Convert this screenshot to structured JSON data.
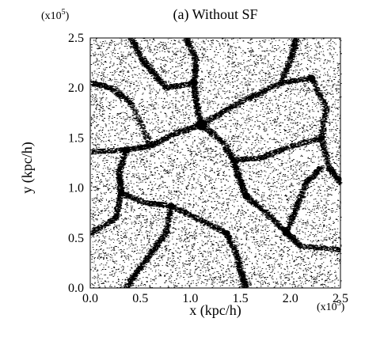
{
  "chart_data": {
    "type": "scatter",
    "title": "(a) Without SF",
    "xlabel": "x (kpc/h)",
    "ylabel": "y (kpc/h)",
    "x_multiplier": "(x10",
    "x_multiplier_exp": "5",
    "x_multiplier_close": ")",
    "y_multiplier": "(x10",
    "y_multiplier_exp": "5",
    "y_multiplier_close": ")",
    "xlim": [
      0.0,
      2.5
    ],
    "ylim": [
      0.0,
      2.5
    ],
    "x_ticks": [
      "0.0",
      "0.5",
      "1.0",
      "1.5",
      "2.0",
      "2.5"
    ],
    "y_ticks": [
      "0.0",
      "0.5",
      "1.0",
      "1.5",
      "2.0",
      "2.5"
    ],
    "grid": false,
    "legend": "none",
    "point_color": "#000000",
    "filaments": [
      [
        [
          0.95,
          2.5
        ],
        [
          1.05,
          2.28
        ],
        [
          1.03,
          2.05
        ],
        [
          1.05,
          1.85
        ],
        [
          1.1,
          1.63
        ]
      ],
      [
        [
          1.1,
          1.63
        ],
        [
          0.85,
          1.55
        ],
        [
          0.6,
          1.42
        ],
        [
          0.35,
          1.38
        ],
        [
          0.0,
          1.36
        ]
      ],
      [
        [
          1.1,
          1.63
        ],
        [
          1.3,
          1.48
        ],
        [
          1.42,
          1.28
        ],
        [
          1.48,
          1.1
        ],
        [
          1.55,
          0.92
        ]
      ],
      [
        [
          1.1,
          1.63
        ],
        [
          1.35,
          1.78
        ],
        [
          1.62,
          1.92
        ],
        [
          1.9,
          2.05
        ],
        [
          2.2,
          2.1
        ]
      ],
      [
        [
          1.55,
          0.92
        ],
        [
          1.75,
          0.75
        ],
        [
          1.95,
          0.55
        ],
        [
          2.1,
          0.42
        ],
        [
          2.5,
          0.38
        ]
      ],
      [
        [
          0.35,
          1.38
        ],
        [
          0.28,
          1.15
        ],
        [
          0.3,
          0.95
        ],
        [
          0.25,
          0.7
        ],
        [
          0.0,
          0.55
        ]
      ],
      [
        [
          0.3,
          0.95
        ],
        [
          0.55,
          0.85
        ],
        [
          0.8,
          0.82
        ],
        [
          1.05,
          0.7
        ],
        [
          1.35,
          0.55
        ]
      ],
      [
        [
          1.35,
          0.55
        ],
        [
          1.45,
          0.35
        ],
        [
          1.5,
          0.15
        ],
        [
          1.55,
          0.0
        ]
      ],
      [
        [
          0.4,
          2.5
        ],
        [
          0.5,
          2.3
        ],
        [
          0.62,
          2.15
        ],
        [
          0.75,
          2.0
        ],
        [
          1.03,
          2.05
        ]
      ],
      [
        [
          1.9,
          2.05
        ],
        [
          2.0,
          2.3
        ],
        [
          2.05,
          2.5
        ]
      ],
      [
        [
          2.2,
          2.1
        ],
        [
          2.35,
          1.8
        ],
        [
          2.3,
          1.5
        ],
        [
          2.38,
          1.2
        ],
        [
          2.5,
          1.05
        ]
      ],
      [
        [
          0.8,
          0.82
        ],
        [
          0.75,
          0.55
        ],
        [
          0.6,
          0.35
        ],
        [
          0.45,
          0.15
        ],
        [
          0.35,
          0.0
        ]
      ],
      [
        [
          1.95,
          0.55
        ],
        [
          2.05,
          0.8
        ],
        [
          2.15,
          1.05
        ],
        [
          2.3,
          1.2
        ]
      ],
      [
        [
          0.0,
          2.05
        ],
        [
          0.2,
          2.0
        ],
        [
          0.4,
          1.85
        ],
        [
          0.6,
          1.42
        ]
      ],
      [
        [
          1.42,
          1.28
        ],
        [
          1.7,
          1.3
        ],
        [
          1.95,
          1.4
        ],
        [
          2.3,
          1.5
        ]
      ]
    ],
    "knots": [
      [
        1.1,
        1.63,
        0.05
      ],
      [
        0.35,
        1.38,
        0.03
      ],
      [
        1.55,
        0.92,
        0.03
      ],
      [
        0.8,
        0.82,
        0.025
      ],
      [
        1.95,
        0.55,
        0.03
      ],
      [
        1.03,
        2.05,
        0.025
      ],
      [
        2.2,
        2.1,
        0.03
      ],
      [
        1.35,
        0.55,
        0.025
      ],
      [
        0.3,
        0.95,
        0.025
      ],
      [
        2.3,
        1.5,
        0.02
      ]
    ]
  }
}
